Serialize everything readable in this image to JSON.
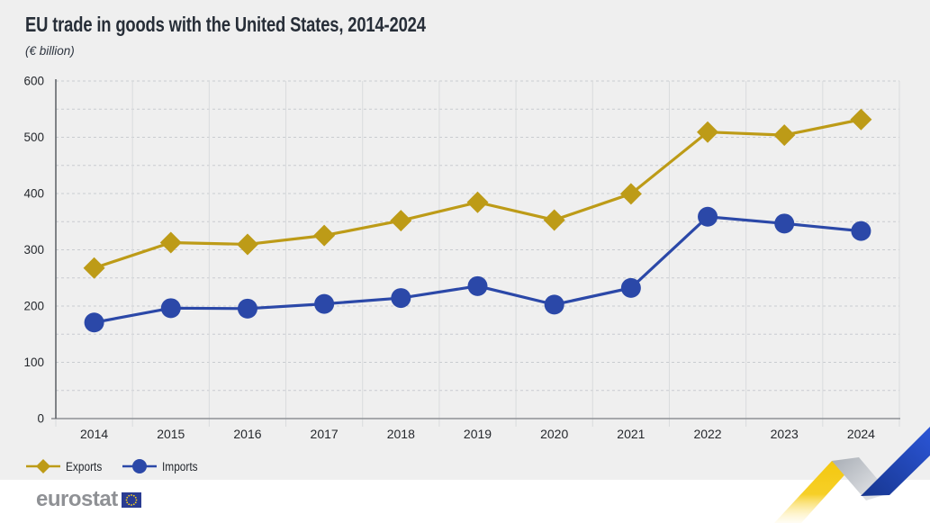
{
  "header": {
    "title": "EU trade in goods with the United States, 2014-2024",
    "subtitle": "(€ billion)"
  },
  "legend": {
    "items": [
      {
        "label": "Exports",
        "marker": "diamond-icon",
        "color": "#BD9B17"
      },
      {
        "label": "Imports",
        "marker": "circle-icon",
        "color": "#2B48A8"
      }
    ]
  },
  "footer": {
    "brand": "eurostat",
    "flag": "eu-flag-icon"
  },
  "colors": {
    "panel_background": "#EFEFEF",
    "exports_gold": "#BD9B17",
    "imports_blue": "#2B48A8",
    "title_text": "#272E38",
    "axis_text": "#25282D",
    "gridline_vertical": "#D9DBDD",
    "gridline_dashed": "#C9CCD0",
    "x_axis_line": "#8E9196",
    "y_axis_line": "#5A5E64",
    "ribbon_yellow": "#F3C60A",
    "ribbon_gray": "#BDC1C7",
    "ribbon_blue": "#2B55D6",
    "flag_blue": "#2A3C92",
    "flag_star_yellow": "#FFD617"
  },
  "chart_data": {
    "type": "line",
    "title": "EU trade in goods with the United States, 2014-2024",
    "subtitle": "(€ billion)",
    "categories": [
      "2014",
      "2015",
      "2016",
      "2017",
      "2018",
      "2019",
      "2020",
      "2021",
      "2022",
      "2023",
      "2024"
    ],
    "series": [
      {
        "name": "Exports",
        "marker": "diamond",
        "color": "#BD9B17",
        "values": [
          267.6,
          312.8,
          309.7,
          325.4,
          351.9,
          384.4,
          352.9,
          399.5,
          509.3,
          503.8,
          531.6
        ]
      },
      {
        "name": "Imports",
        "marker": "circle",
        "color": "#2B48A8",
        "values": [
          170.8,
          196.3,
          195.5,
          203.8,
          214.3,
          235.5,
          202.6,
          232.2,
          358.8,
          346.7,
          333.4
        ]
      }
    ],
    "xlabel": "",
    "ylabel": "",
    "ylim": [
      0,
      600
    ],
    "y_ticks": [
      0,
      100,
      200,
      300,
      400,
      500,
      600
    ],
    "grid_minor_step": 50,
    "grid": "horizontal-dashed-every-50, vertical-solid-category-boundaries",
    "legend_position": "bottom-left"
  }
}
